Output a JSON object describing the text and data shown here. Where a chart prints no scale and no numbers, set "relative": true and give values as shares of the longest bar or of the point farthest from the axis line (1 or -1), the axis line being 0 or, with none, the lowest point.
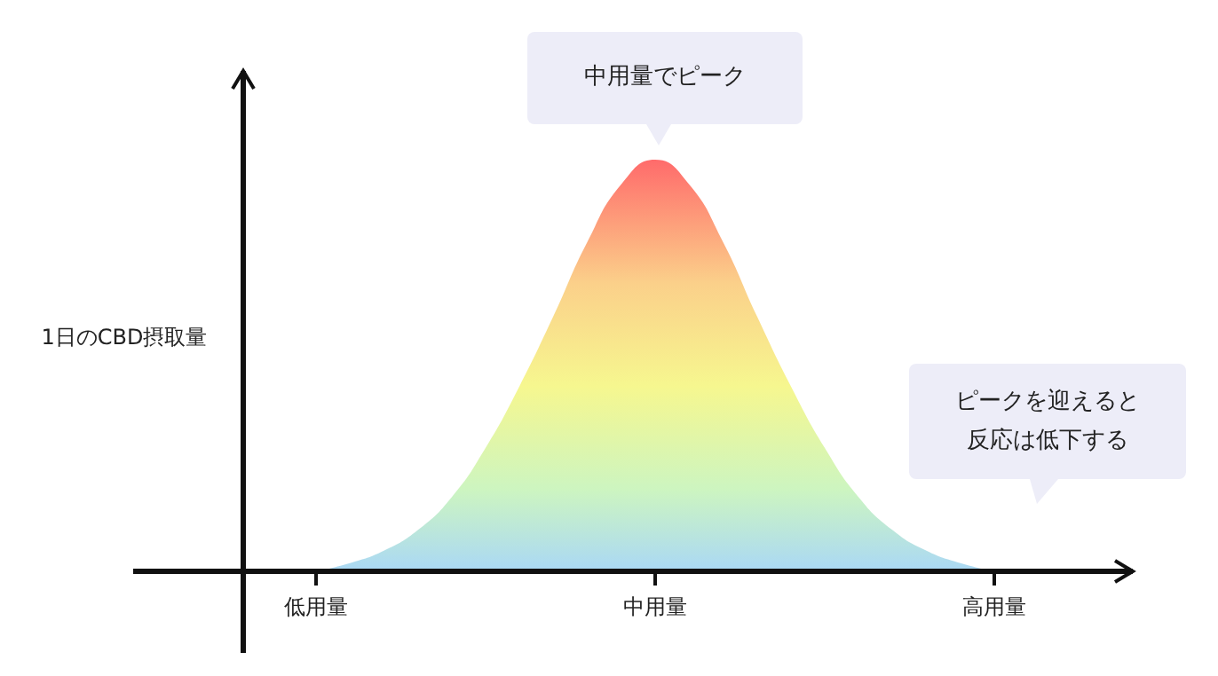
{
  "chart_data": {
    "type": "area",
    "relative": true,
    "ylabel": "1日のCBD摂取量",
    "categories": [
      "低用量",
      null,
      null,
      null,
      null,
      null,
      null,
      null,
      null,
      null,
      "中用量",
      null,
      null,
      null,
      null,
      null,
      null,
      null,
      null,
      null,
      "高用量"
    ],
    "series": [
      {
        "color": "#f6f78f",
        "values": [
          0,
          0.02,
          0.05,
          0.1,
          0.18,
          0.3,
          0.45,
          0.62,
          0.8,
          0.94,
          1,
          0.94,
          0.8,
          0.62,
          0.45,
          0.3,
          0.18,
          0.1,
          0.05,
          0.02,
          0
        ]
      }
    ],
    "annotations": [
      "中用量でピーク",
      "ピークを迎えると反応は低下する"
    ],
    "grid": false
  }
}
